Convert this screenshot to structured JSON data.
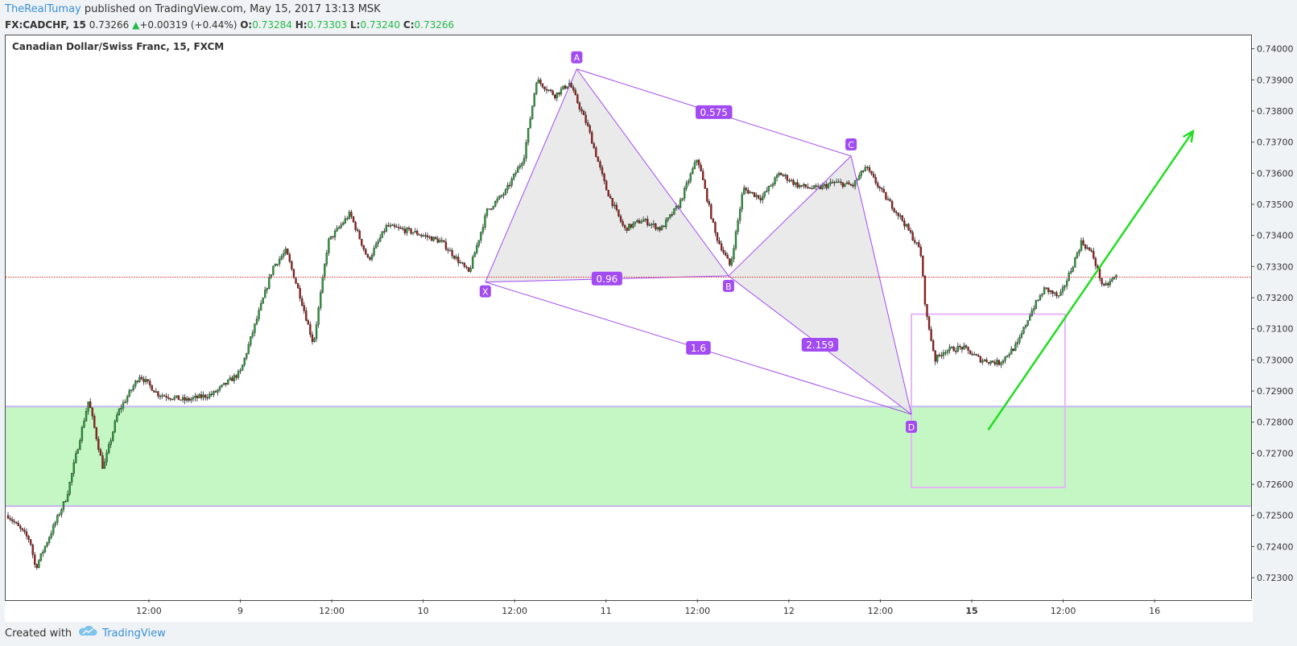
{
  "header": {
    "author": "TheRealTumay",
    "published_text": "published on TradingView.com, May 15, 2017 13:13 MSK"
  },
  "symbol_bar": {
    "symbol": "FX:CADCHF, 15",
    "last": "0.73266",
    "change": "+0.00319 (+0.44%)",
    "o_label": "O:",
    "o": "0.73284",
    "h_label": "H:",
    "h": "0.73303",
    "l_label": "L:",
    "l": "0.73240",
    "c_label": "C:",
    "c": "0.73266"
  },
  "footer": {
    "created_with": "Created with",
    "brand": "TradingView"
  },
  "colors": {
    "bull": "#2a9e3a",
    "bear": "#a31b1b",
    "pattern": "#a24bf2",
    "pattern_fill": "#e8e8e8",
    "demand_zone": "#c5f7c5",
    "arrow": "#22dd22",
    "current_line": "#d32f2f"
  },
  "chart_data": {
    "type": "candlestick",
    "title": "Canadian Dollar/Swiss Franc, 15, FXCM",
    "ylim": [
      0.7222,
      0.7403
    ],
    "yticks": [
      "0.74000",
      "0.73900",
      "0.73800",
      "0.73700",
      "0.73600",
      "0.73500",
      "0.73400",
      "0.73300",
      "0.73200",
      "0.73100",
      "0.73000",
      "0.72900",
      "0.72800",
      "0.72700",
      "0.72600",
      "0.72500",
      "0.72400",
      "0.72300"
    ],
    "xticks": [
      {
        "t": 0.5,
        "label": "12:00",
        "bold": false
      },
      {
        "t": 1.0,
        "label": "9",
        "bold": false
      },
      {
        "t": 1.5,
        "label": "12:00",
        "bold": false
      },
      {
        "t": 2.0,
        "label": "10",
        "bold": false
      },
      {
        "t": 2.5,
        "label": "12:00",
        "bold": false
      },
      {
        "t": 3.0,
        "label": "11",
        "bold": false
      },
      {
        "t": 3.5,
        "label": "12:00",
        "bold": false
      },
      {
        "t": 4.0,
        "label": "12",
        "bold": false
      },
      {
        "t": 4.5,
        "label": "12:00",
        "bold": false
      },
      {
        "t": 5.0,
        "label": "15",
        "bold": true
      },
      {
        "t": 5.5,
        "label": "12:00",
        "bold": false
      },
      {
        "t": 6.0,
        "label": "16",
        "bold": false
      }
    ],
    "xlim": [
      -0.27,
      6.29
    ],
    "price_path": [
      [
        -0.27,
        0.725
      ],
      [
        -0.15,
        0.7242
      ],
      [
        -0.12,
        0.7233
      ],
      [
        0.05,
        0.7256
      ],
      [
        0.17,
        0.7287
      ],
      [
        0.25,
        0.7265
      ],
      [
        0.33,
        0.7283
      ],
      [
        0.45,
        0.7295
      ],
      [
        0.55,
        0.7289
      ],
      [
        0.7,
        0.7287
      ],
      [
        0.85,
        0.7289
      ],
      [
        1.0,
        0.7296
      ],
      [
        1.1,
        0.7315
      ],
      [
        1.18,
        0.733
      ],
      [
        1.25,
        0.7335
      ],
      [
        1.33,
        0.732
      ],
      [
        1.4,
        0.7305
      ],
      [
        1.48,
        0.7338
      ],
      [
        1.6,
        0.7347
      ],
      [
        1.7,
        0.7332
      ],
      [
        1.8,
        0.7343
      ],
      [
        1.95,
        0.7341
      ],
      [
        2.1,
        0.7338
      ],
      [
        2.25,
        0.7328
      ],
      [
        2.35,
        0.7348
      ],
      [
        2.45,
        0.7354
      ],
      [
        2.55,
        0.7365
      ],
      [
        2.62,
        0.739
      ],
      [
        2.72,
        0.7385
      ],
      [
        2.8,
        0.7389
      ],
      [
        2.9,
        0.7375
      ],
      [
        3.0,
        0.7355
      ],
      [
        3.1,
        0.7342
      ],
      [
        3.2,
        0.7345
      ],
      [
        3.3,
        0.7342
      ],
      [
        3.4,
        0.735
      ],
      [
        3.5,
        0.7365
      ],
      [
        3.6,
        0.734
      ],
      [
        3.68,
        0.733
      ],
      [
        3.75,
        0.7355
      ],
      [
        3.85,
        0.7352
      ],
      [
        3.95,
        0.736
      ],
      [
        4.05,
        0.7356
      ],
      [
        4.15,
        0.7355
      ],
      [
        4.25,
        0.7357
      ],
      [
        4.35,
        0.7356
      ],
      [
        4.42,
        0.7362
      ],
      [
        4.52,
        0.7353
      ],
      [
        4.62,
        0.7345
      ],
      [
        4.72,
        0.7335
      ],
      [
        4.75,
        0.7315
      ],
      [
        4.8,
        0.73
      ],
      [
        4.85,
        0.7303
      ],
      [
        4.95,
        0.7304
      ],
      [
        5.05,
        0.73
      ],
      [
        5.15,
        0.7299
      ],
      [
        5.25,
        0.7305
      ],
      [
        5.32,
        0.7315
      ],
      [
        5.4,
        0.7323
      ],
      [
        5.48,
        0.732
      ],
      [
        5.55,
        0.733
      ],
      [
        5.6,
        0.7338
      ],
      [
        5.66,
        0.7334
      ],
      [
        5.72,
        0.7323
      ],
      [
        5.79,
        0.7327
      ]
    ],
    "harmonic_pattern": {
      "points": [
        {
          "label": "X",
          "t": 2.34,
          "price": 0.7325
        },
        {
          "label": "A",
          "t": 2.84,
          "price": 0.73935
        },
        {
          "label": "B",
          "t": 3.67,
          "price": 0.7327
        },
        {
          "label": "C",
          "t": 4.34,
          "price": 0.73655
        },
        {
          "label": "D",
          "t": 4.67,
          "price": 0.72825
        }
      ],
      "ratios": [
        "0.575",
        "0.96",
        "1.6",
        "2.159"
      ]
    },
    "demand_zone": {
      "top": 0.7285,
      "bottom": 0.7253
    },
    "target_box": {
      "t_start": 4.67,
      "t_end": 5.51,
      "top": 0.73147,
      "bottom": 0.7259
    },
    "arrow": {
      "t_start": 5.09,
      "price_start": 0.72775,
      "t_end": 6.21,
      "price_end": 0.73735
    },
    "current_price": 0.73266
  }
}
